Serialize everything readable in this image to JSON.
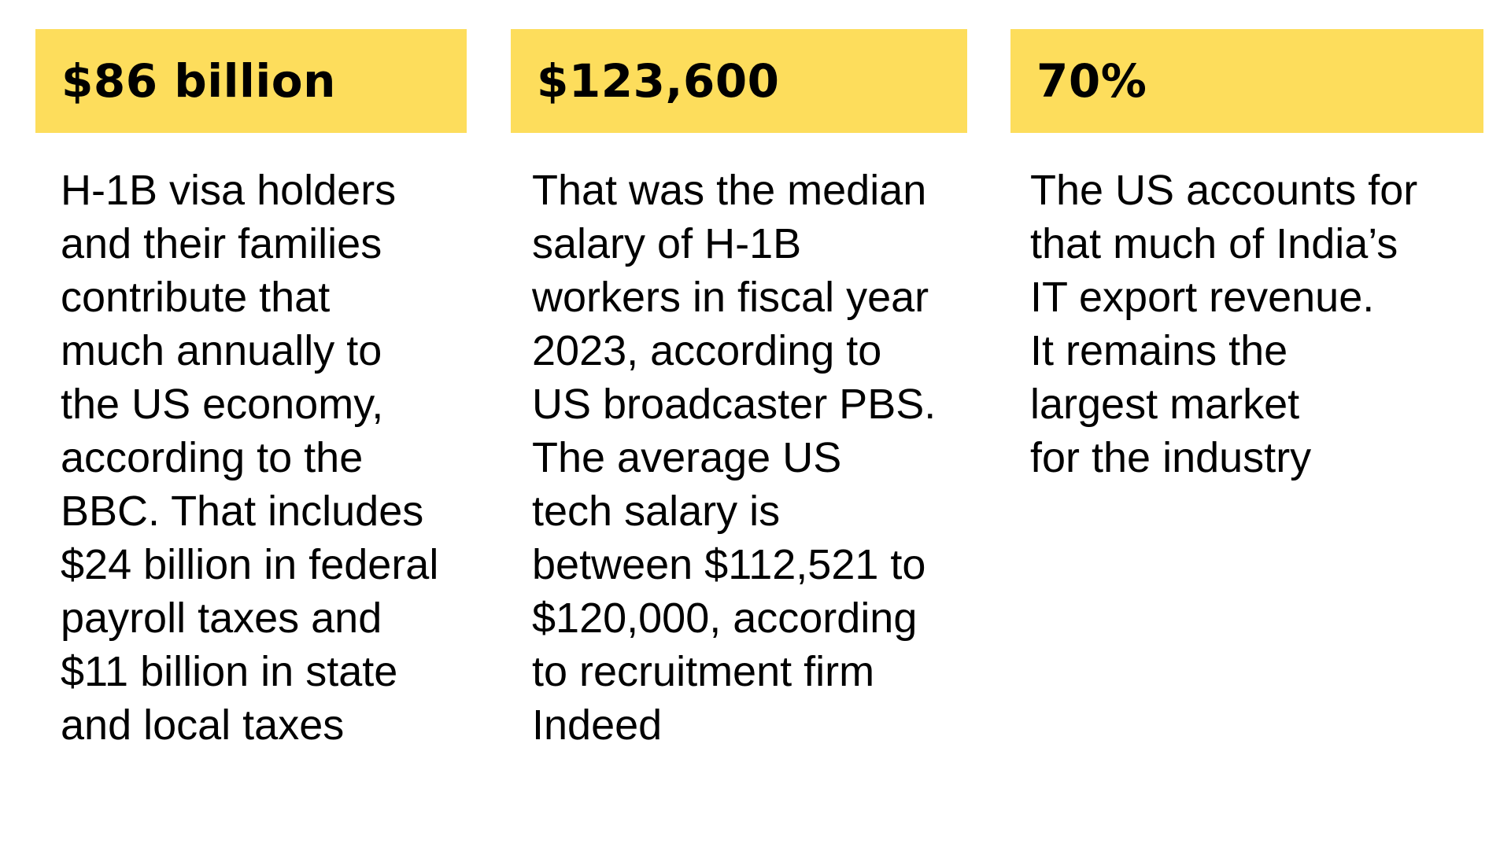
{
  "colors": {
    "banner_background": "#FDDD5C",
    "text": "#000000",
    "page_background": "#FFFFFF"
  },
  "cards": [
    {
      "value": "$86 billion",
      "lines": [
        "H-1B visa holders",
        "and their families",
        "contribute that",
        "much annually to",
        "the US economy,",
        "according to the",
        "BBC. That includes",
        "$24 billion in federal",
        "payroll taxes and",
        "$11 billion in state",
        "and local taxes"
      ]
    },
    {
      "value": "$123,600",
      "lines": [
        "That was the median",
        "salary of H-1B",
        "workers in fiscal year",
        "2023, according to",
        "US broadcaster PBS.",
        "The average US",
        "tech salary is",
        "between $112,521 to",
        "$120,000, according",
        "to recruitment firm",
        "Indeed"
      ]
    },
    {
      "value": "70%",
      "lines": [
        "The US accounts for",
        "that much of India’s",
        "IT export revenue.",
        "It remains the",
        "largest market",
        "for the industry"
      ]
    }
  ]
}
